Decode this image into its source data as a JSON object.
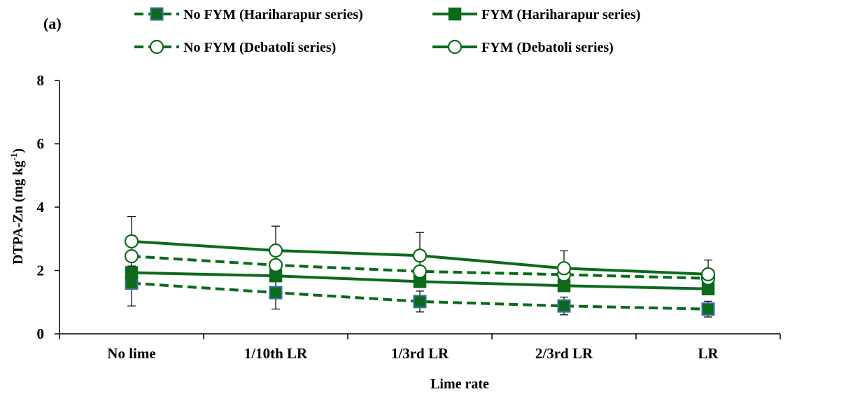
{
  "panel_label": "(a)",
  "chart_data": {
    "type": "line",
    "title": "",
    "xlabel": "Lime rate",
    "ylabel": "DTPA-Zn (mg kg",
    "ylabel_sup": "-1",
    "ylabel_close": ")",
    "categories": [
      "No lime",
      "1/10th LR",
      "1/3rd  LR",
      "2/3rd  LR",
      "LR"
    ],
    "ylim": [
      0,
      8
    ],
    "yticks": [
      0,
      2,
      4,
      6,
      8
    ],
    "grid": false,
    "legend_position": "top",
    "series": [
      {
        "name": "No FYM (Hariharapur series)",
        "line": "dashed",
        "marker": "square-outlined",
        "values": [
          1.6,
          1.3,
          1.02,
          0.88,
          0.78
        ],
        "error": [
          0.72,
          0.52,
          0.33,
          0.28,
          0.25
        ]
      },
      {
        "name": "FYM (Hariharapur series)",
        "line": "solid",
        "marker": "square-filled",
        "values": [
          1.93,
          1.83,
          1.65,
          1.52,
          1.42
        ],
        "error": [
          0.0,
          0.0,
          0.0,
          0.0,
          0.0
        ]
      },
      {
        "name": "No FYM (Debatoli series)",
        "line": "dashed",
        "marker": "circle-open",
        "values": [
          2.45,
          2.17,
          1.97,
          1.87,
          1.75
        ],
        "error": [
          0.0,
          0.0,
          0.0,
          0.0,
          0.0
        ]
      },
      {
        "name": "FYM (Debatoli series)",
        "line": "solid",
        "marker": "circle-open",
        "values": [
          2.92,
          2.63,
          2.47,
          2.07,
          1.88
        ],
        "error": [
          0.78,
          0.77,
          0.73,
          0.55,
          0.45
        ]
      }
    ],
    "colors": {
      "line": "#0b6b1b",
      "marker_fill": "#0b6b1b",
      "marker_outline": "#3b6fa8",
      "axis": "#000000"
    }
  }
}
